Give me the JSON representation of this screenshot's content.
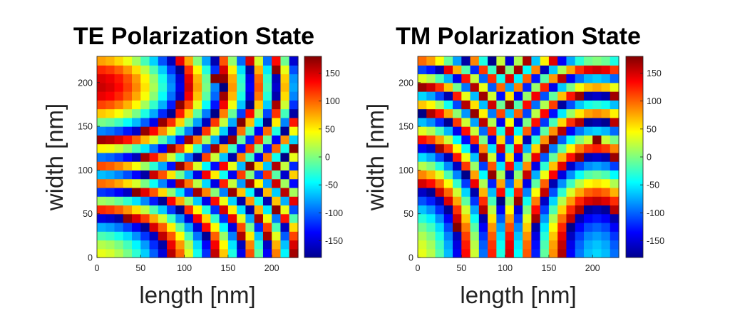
{
  "chart_data": [
    {
      "type": "heatmap",
      "title": "TE Polarization State",
      "xlabel": "length [nm]",
      "ylabel": "width [nm]",
      "xlim": [
        0,
        230
      ],
      "ylim": [
        0,
        230
      ],
      "xticks": [
        0,
        50,
        100,
        150,
        200
      ],
      "yticks": [
        0,
        50,
        100,
        150,
        200
      ],
      "grid": false,
      "colormap": "jet",
      "clim": [
        -180,
        180
      ],
      "colorbar_ticks": [
        150,
        100,
        50,
        0,
        -50,
        -100,
        -150
      ],
      "colorbar_tick_labels": [
        "150",
        "100",
        "50",
        "0",
        "-50",
        "-100",
        "-150"
      ],
      "cell_size": 10,
      "phase_scale": 0.055,
      "phase_offset": 40,
      "axis_slope": 0.6,
      "outliers": [
        {
          "x": 135,
          "y": 205,
          "value": 178
        },
        {
          "x": 155,
          "y": 135,
          "value": 172
        }
      ]
    },
    {
      "type": "heatmap",
      "title": "TM Polarization State",
      "xlabel": "length [nm]",
      "ylabel": "width [nm]",
      "xlim": [
        0,
        230
      ],
      "ylim": [
        0,
        230
      ],
      "xticks": [
        0,
        50,
        100,
        150,
        200
      ],
      "yticks": [
        0,
        50,
        100,
        150,
        200
      ],
      "grid": false,
      "colormap": "jet",
      "clim": [
        -180,
        180
      ],
      "colorbar_ticks": [
        150,
        100,
        50,
        0,
        -50,
        -100,
        -150
      ],
      "colorbar_tick_labels": [
        "150",
        "100",
        "50",
        "0",
        "-50",
        "-100",
        "-150"
      ],
      "cell_size": 10,
      "phase_scale": 0.055,
      "phase_offset": 40,
      "axis_slope": 1.6,
      "outliers": [
        {
          "x": 205,
          "y": 135,
          "value": 178
        }
      ]
    }
  ]
}
